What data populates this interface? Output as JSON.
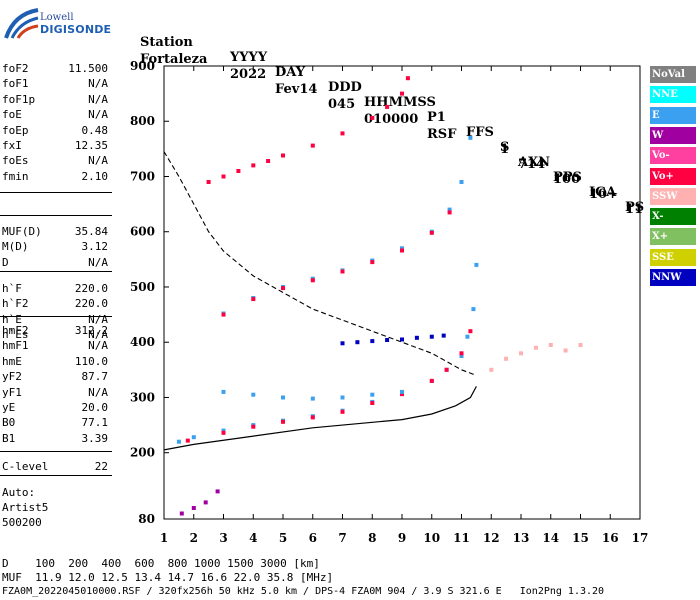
{
  "header": {
    "logo_line1": "Lowell",
    "logo_line2": "DIGISONDE",
    "row1": [
      "Station",
      "YYYY",
      "DAY",
      "DDD",
      "HHMMSS",
      "P1",
      "FFS",
      "S",
      "AXN",
      "PPS",
      "IGA",
      "PS"
    ],
    "row2": [
      "Fortaleza",
      "2022",
      "Fev14",
      "045",
      "010000",
      "RSF",
      "1",
      "714",
      "100",
      "10+",
      "11"
    ]
  },
  "params": {
    "group1": [
      {
        "k": "foF2",
        "v": "11.500"
      },
      {
        "k": "foF1",
        "v": "N/A"
      },
      {
        "k": "foF1p",
        "v": "N/A"
      },
      {
        "k": "foE",
        "v": "N/A"
      },
      {
        "k": "foEp",
        "v": "0.48"
      },
      {
        "k": "fxI",
        "v": "12.35"
      },
      {
        "k": "foEs",
        "v": "N/A"
      },
      {
        "k": "fmin",
        "v": "2.10"
      }
    ],
    "group2": [
      {
        "k": "MUF(D)",
        "v": "35.84"
      },
      {
        "k": "M(D)",
        "v": "3.12"
      },
      {
        "k": "D",
        "v": "N/A"
      }
    ],
    "group3": [
      {
        "k": "h`F",
        "v": "220.0"
      },
      {
        "k": "h`F2",
        "v": "220.0"
      },
      {
        "k": "h`E",
        "v": "N/A"
      },
      {
        "k": "h`Es",
        "v": "N/A"
      }
    ],
    "group4": [
      {
        "k": "hmF2",
        "v": "312.2"
      },
      {
        "k": "hmF1",
        "v": "N/A"
      },
      {
        "k": "hmE",
        "v": "110.0"
      },
      {
        "k": "yF2",
        "v": "87.7"
      },
      {
        "k": "yF1",
        "v": "N/A"
      },
      {
        "k": "yE",
        "v": "20.0"
      },
      {
        "k": "B0",
        "v": "77.1"
      },
      {
        "k": "B1",
        "v": "3.39"
      }
    ],
    "group5": [
      {
        "k": "C-level",
        "v": "22"
      }
    ],
    "auto": [
      "Auto:",
      "Artist5",
      "500200"
    ]
  },
  "legend": [
    {
      "label": "NoVal",
      "color": "#808080"
    },
    {
      "label": "NNE",
      "color": "#00ffff"
    },
    {
      "label": "E",
      "color": "#3ca0f0"
    },
    {
      "label": "W",
      "color": "#a000a0"
    },
    {
      "label": "Vo-",
      "color": "#ff40a0"
    },
    {
      "label": "Vo+",
      "color": "#ff0040"
    },
    {
      "label": "SSW",
      "color": "#ffb0b0"
    },
    {
      "label": "X-",
      "color": "#008000"
    },
    {
      "label": "X+",
      "color": "#80c060"
    },
    {
      "label": "SSE",
      "color": "#d0d000"
    },
    {
      "label": "NNW",
      "color": "#0000c0"
    }
  ],
  "chart_data": {
    "type": "scatter",
    "xlim": [
      1,
      17
    ],
    "ylim": [
      80,
      900
    ],
    "x_ticks": [
      "1",
      "2",
      "3",
      "4",
      "5",
      "6",
      "7",
      "8",
      "9",
      "10",
      "11",
      "12",
      "13",
      "14",
      "15",
      "16",
      "17"
    ],
    "y_ticks": [
      "80",
      "200",
      "300",
      "400",
      "500",
      "600",
      "700",
      "800",
      "900"
    ],
    "traces": [
      {
        "name": "E",
        "x": [
          1.5,
          2.0,
          3.0,
          4.0,
          5.0,
          6.0,
          7.0,
          8.0,
          9.0,
          10.0,
          10.5,
          11.0,
          11.2,
          11.4,
          11.5
        ],
        "y": [
          220,
          228,
          240,
          250,
          258,
          266,
          276,
          292,
          308,
          330,
          350,
          375,
          410,
          460,
          540
        ]
      },
      {
        "name": "Vo+",
        "x": [
          1.8,
          3.0,
          4.0,
          5.0,
          6.0,
          7.0,
          8.0,
          9.0,
          10.0,
          10.5,
          11.0,
          11.3
        ],
        "y": [
          222,
          236,
          247,
          256,
          264,
          274,
          290,
          306,
          330,
          350,
          380,
          420
        ]
      },
      {
        "name": "E",
        "x": [
          3.0,
          4.0,
          5.0,
          6.0,
          7.0,
          8.0,
          9.0,
          10.0,
          10.6,
          11.0,
          11.3
        ],
        "y": [
          452,
          480,
          500,
          515,
          530,
          548,
          570,
          600,
          640,
          690,
          770
        ]
      },
      {
        "name": "Vo+",
        "x": [
          3.0,
          4.0,
          5.0,
          6.0,
          7.0,
          8.0,
          9.0,
          10.0,
          10.6
        ],
        "y": [
          450,
          478,
          498,
          512,
          528,
          545,
          566,
          598,
          635
        ]
      },
      {
        "name": "Vo+",
        "x": [
          2.5,
          3.0,
          3.5,
          4.0,
          4.5,
          5.0,
          6.0,
          7.0,
          8.0,
          8.5,
          9.0,
          9.2
        ],
        "y": [
          690,
          700,
          710,
          720,
          728,
          738,
          756,
          778,
          806,
          826,
          850,
          878
        ]
      },
      {
        "name": "NNW",
        "x": [
          7.0,
          7.5,
          8.0,
          8.5,
          9.0,
          9.5,
          10.0,
          10.4
        ],
        "y": [
          398,
          400,
          402,
          404,
          405,
          408,
          410,
          412
        ]
      },
      {
        "name": "E",
        "x": [
          3.0,
          4.0,
          5.0,
          6.0,
          7.0,
          8.0,
          9.0
        ],
        "y": [
          310,
          305,
          300,
          298,
          300,
          305,
          310
        ]
      },
      {
        "name": "SSW",
        "x": [
          12.0,
          12.5,
          13.0,
          13.5,
          14.0,
          14.5,
          15.0
        ],
        "y": [
          350,
          370,
          380,
          390,
          395,
          385,
          395
        ]
      },
      {
        "name": "W",
        "x": [
          1.6,
          2.0,
          2.4,
          2.8
        ],
        "y": [
          90,
          100,
          110,
          130
        ]
      }
    ],
    "profile_curve": {
      "x": [
        1.0,
        2.0,
        4.0,
        6.0,
        8.0,
        9.0,
        10.0,
        10.8,
        11.3,
        11.5
      ],
      "y": [
        205,
        215,
        230,
        245,
        255,
        260,
        270,
        285,
        300,
        320
      ]
    },
    "muf_curve": {
      "x": [
        1.0,
        1.5,
        2.0,
        2.5,
        3.0,
        4.0,
        5.0,
        6.0,
        7.0,
        8.0,
        9.0,
        10.0,
        11.0,
        11.5
      ],
      "y": [
        745,
        700,
        650,
        600,
        565,
        520,
        490,
        460,
        440,
        420,
        400,
        380,
        350,
        340
      ]
    }
  },
  "footer": {
    "line1": "D    100  200  400  600  800 1000 1500 3000 [km]",
    "line2": "MUF  11.9 12.0 12.5 13.4 14.7 16.6 22.0 35.8 [MHz]",
    "line3": "FZA0M_2022045010000.RSF / 320fx256h 50 kHz 5.0 km / DPS-4 FZA0M 904 / 3.9 S 321.6 E   Ion2Png 1.3.20"
  }
}
